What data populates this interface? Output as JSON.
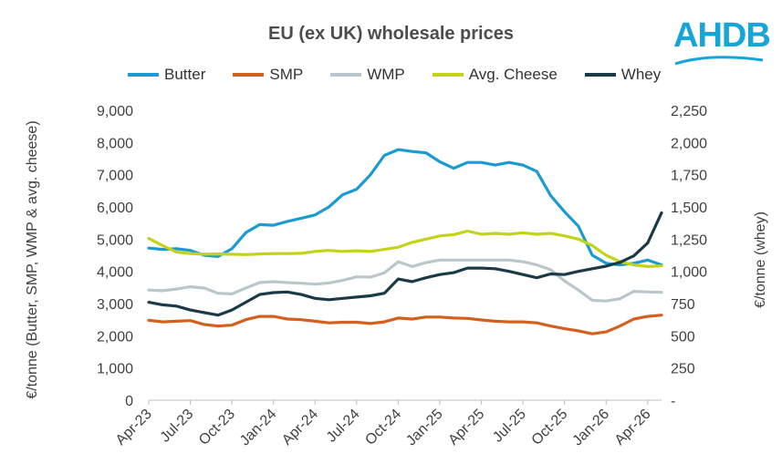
{
  "header": {
    "title": "EU (ex UK) wholesale prices",
    "logo_text": "AHDB"
  },
  "legend": [
    {
      "label": "Butter",
      "color": "#1b9bd1"
    },
    {
      "label": "SMP",
      "color": "#d4601e"
    },
    {
      "label": "WMP",
      "color": "#b9c7cc"
    },
    {
      "label": "Avg. Cheese",
      "color": "#c3d318"
    },
    {
      "label": "Whey",
      "color": "#1b3a48"
    }
  ],
  "chart_data": {
    "type": "line",
    "title": "EU (ex UK) wholesale prices",
    "ylabel": "€/tonne (Butter, SMP, WMP & avg. cheese)",
    "y2label": "€/tonne (whey)",
    "ylim": [
      0,
      9000
    ],
    "y2lim": [
      0,
      2250
    ],
    "yticks": [
      "0",
      "1,000",
      "2,000",
      "3,000",
      "4,000",
      "5,000",
      "6,000",
      "7,000",
      "8,000",
      "9,000"
    ],
    "y2ticks": [
      "-",
      "250",
      "500",
      "750",
      "1,000",
      "1,250",
      "1,500",
      "1,750",
      "2,000",
      "2,250"
    ],
    "x": [
      "Apr-23",
      "May-23",
      "Jun-23",
      "Jul-23",
      "Aug-23",
      "Sep-23",
      "Oct-23",
      "Nov-23",
      "Dec-23",
      "Jan-24",
      "Feb-24",
      "Mar-24",
      "Apr-24",
      "May-24",
      "Jun-24",
      "Jul-24",
      "Aug-24",
      "Sep-24",
      "Oct-24",
      "Nov-24",
      "Dec-24",
      "Jan-25",
      "Feb-25",
      "Mar-25",
      "Apr-25",
      "May-25",
      "Jun-25",
      "Jul-25",
      "Aug-25",
      "Sep-25",
      "Oct-25",
      "Nov-25",
      "Dec-25",
      "Jan-26",
      "Feb-26",
      "Mar-26",
      "Apr-26",
      "May-26"
    ],
    "xtick_labels": [
      "Apr-23",
      "Jul-23",
      "Oct-23",
      "Jan-24",
      "Apr-24",
      "Jul-24",
      "Oct-24",
      "Jan-25",
      "Apr-25",
      "Jul-25",
      "Oct-25",
      "Jan-26",
      "Apr-26"
    ],
    "series": [
      {
        "name": "Butter",
        "axis": "left",
        "color": "#1b9bd1",
        "values": [
          4720,
          4680,
          4700,
          4650,
          4500,
          4460,
          4700,
          5200,
          5450,
          5430,
          5550,
          5650,
          5750,
          6000,
          6380,
          6550,
          7000,
          7600,
          7780,
          7720,
          7680,
          7400,
          7200,
          7380,
          7380,
          7300,
          7380,
          7300,
          7100,
          6350,
          5850,
          5400,
          4500,
          4250,
          4200,
          4250,
          4350,
          4200
        ]
      },
      {
        "name": "SMP",
        "axis": "left",
        "color": "#d4601e",
        "values": [
          2480,
          2430,
          2450,
          2470,
          2350,
          2300,
          2330,
          2500,
          2600,
          2600,
          2520,
          2500,
          2450,
          2400,
          2420,
          2420,
          2380,
          2430,
          2550,
          2520,
          2580,
          2580,
          2550,
          2540,
          2490,
          2450,
          2430,
          2430,
          2400,
          2300,
          2220,
          2150,
          2060,
          2120,
          2300,
          2520,
          2600,
          2640
        ]
      },
      {
        "name": "WMP",
        "axis": "left",
        "color": "#b9c7cc",
        "values": [
          3420,
          3400,
          3450,
          3520,
          3480,
          3320,
          3300,
          3480,
          3650,
          3680,
          3650,
          3630,
          3600,
          3640,
          3720,
          3830,
          3820,
          3950,
          4300,
          4150,
          4270,
          4350,
          4350,
          4350,
          4350,
          4350,
          4350,
          4300,
          4200,
          4050,
          3700,
          3420,
          3100,
          3080,
          3150,
          3380,
          3360,
          3350
        ]
      },
      {
        "name": "Avg. Cheese",
        "axis": "left",
        "color": "#c3d318",
        "values": [
          5020,
          4800,
          4600,
          4550,
          4530,
          4540,
          4530,
          4520,
          4540,
          4550,
          4550,
          4560,
          4620,
          4650,
          4620,
          4640,
          4620,
          4680,
          4750,
          4900,
          5000,
          5100,
          5140,
          5250,
          5150,
          5180,
          5150,
          5200,
          5150,
          5180,
          5100,
          5000,
          4800,
          4500,
          4300,
          4200,
          4150,
          4170
        ]
      },
      {
        "name": "Whey",
        "axis": "right",
        "color": "#1b3a48",
        "values": [
          760,
          740,
          730,
          700,
          680,
          660,
          700,
          760,
          820,
          835,
          840,
          820,
          790,
          780,
          790,
          800,
          810,
          830,
          940,
          920,
          950,
          975,
          990,
          1025,
          1025,
          1020,
          1000,
          975,
          950,
          980,
          975,
          1000,
          1020,
          1040,
          1070,
          1120,
          1220,
          1455
        ]
      }
    ]
  }
}
